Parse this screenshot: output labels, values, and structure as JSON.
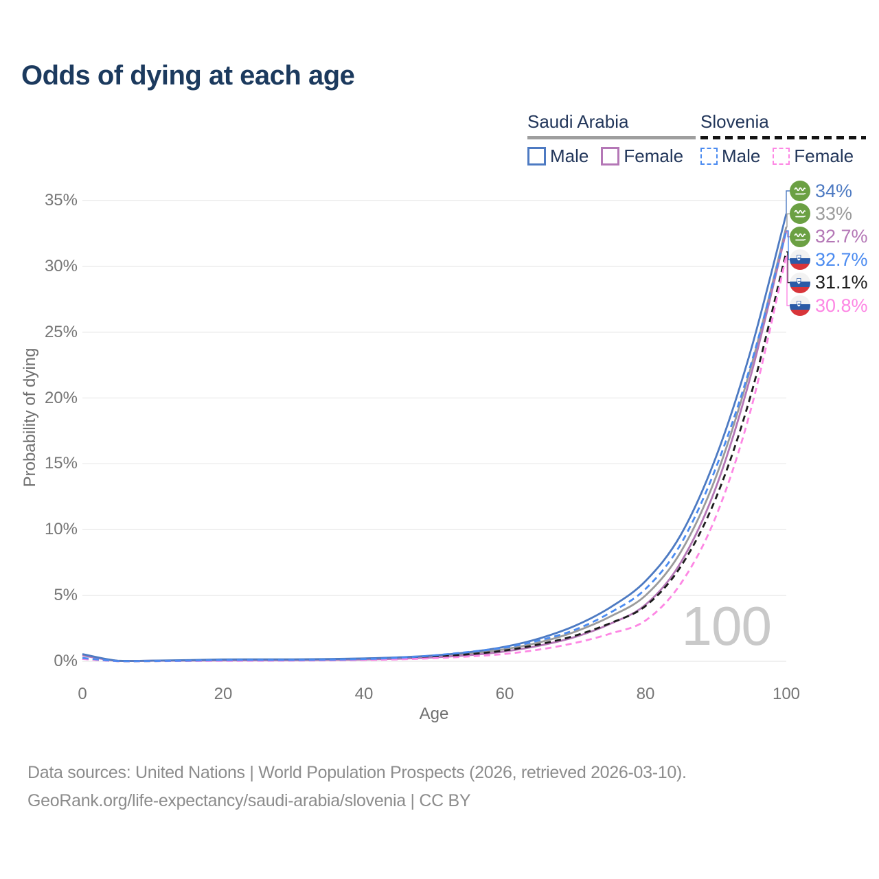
{
  "title": "Odds of dying at each age",
  "legend": {
    "groups": [
      {
        "label": "Saudi Arabia",
        "line_style": "solid",
        "underline_color": "#9e9e9e",
        "items": [
          {
            "label": "Male",
            "swatch": "saudi-male"
          },
          {
            "label": "Female",
            "swatch": "saudi-female"
          }
        ]
      },
      {
        "label": "Slovenia",
        "line_style": "dashed",
        "underline_color": "#141414",
        "items": [
          {
            "label": "Male",
            "swatch": "slovenia-male"
          },
          {
            "label": "Female",
            "swatch": "slovenia-female"
          }
        ]
      }
    ]
  },
  "colors": {
    "saudi_male": "#4d7ac2",
    "saudi_both": "#9b9b9b",
    "saudi_female": "#b477b6",
    "slovenia_male": "#4b8bf0",
    "slovenia_both": "#1c1c1c",
    "slovenia_female": "#fd87e4",
    "title_text": "#1c3a5e",
    "axis_text": "#757575",
    "gridline": "#e8e8e8",
    "watermark": "#c9c9c9",
    "saudi_flag_green": "#6ba043",
    "slovenia_flag_blue": "#2b5ba7",
    "slovenia_flag_red": "#d8353a"
  },
  "chart_data": {
    "type": "line",
    "title": "Odds of dying at each age",
    "xlabel": "Age",
    "ylabel": "Probability of dying",
    "xlim": [
      0,
      100
    ],
    "ylim": [
      0,
      35
    ],
    "x_ticks": [
      "0",
      "20",
      "40",
      "60",
      "80",
      "100"
    ],
    "y_ticks": [
      "0%",
      "5%",
      "10%",
      "15%",
      "20%",
      "25%",
      "30%",
      "35%"
    ],
    "grid": "horizontal",
    "legend_position": "top-right",
    "watermark": "100",
    "x": [
      0,
      5,
      10,
      15,
      20,
      25,
      30,
      35,
      40,
      45,
      50,
      55,
      60,
      65,
      70,
      75,
      80,
      85,
      90,
      95,
      100
    ],
    "series": [
      {
        "key": "saudi-male",
        "name": "Saudi Arabia Male",
        "color": "#4d7ac2",
        "dash": false,
        "flag": "saudi-arabia",
        "end_label": "34%",
        "values": [
          0.55,
          0.04,
          0.05,
          0.09,
          0.14,
          0.15,
          0.15,
          0.17,
          0.22,
          0.3,
          0.45,
          0.7,
          1.1,
          1.75,
          2.7,
          4.1,
          6.1,
          9.6,
          15.5,
          23.7,
          34.0
        ]
      },
      {
        "key": "saudi-both",
        "name": "Saudi Arabia Both sexes",
        "color": "#9b9b9b",
        "dash": false,
        "flag": "saudi-arabia",
        "end_label": "33%",
        "values": [
          0.5,
          0.035,
          0.045,
          0.07,
          0.11,
          0.12,
          0.12,
          0.14,
          0.18,
          0.25,
          0.38,
          0.58,
          0.92,
          1.45,
          2.25,
          3.4,
          5.0,
          8.3,
          14.0,
          22.4,
          33.0
        ]
      },
      {
        "key": "saudi-female",
        "name": "Saudi Arabia Female",
        "color": "#b477b6",
        "dash": false,
        "flag": "saudi-arabia",
        "end_label": "32.7%",
        "values": [
          0.45,
          0.03,
          0.04,
          0.05,
          0.07,
          0.08,
          0.09,
          0.11,
          0.14,
          0.2,
          0.3,
          0.47,
          0.75,
          1.2,
          1.85,
          2.85,
          4.3,
          7.5,
          13.2,
          21.8,
          32.7
        ]
      },
      {
        "key": "slovenia-male",
        "name": "Slovenia Male",
        "color": "#4b8bf0",
        "dash": true,
        "flag": "slovenia",
        "end_label": "32.7%",
        "values": [
          0.25,
          0.02,
          0.02,
          0.05,
          0.09,
          0.1,
          0.1,
          0.12,
          0.17,
          0.27,
          0.45,
          0.72,
          1.05,
          1.6,
          2.4,
          3.7,
          5.5,
          8.9,
          14.7,
          22.6,
          32.7
        ]
      },
      {
        "key": "slovenia-both",
        "name": "Slovenia Both sexes",
        "color": "#1c1c1c",
        "dash": true,
        "flag": "slovenia",
        "end_label": "31.1%",
        "values": [
          0.2,
          0.015,
          0.018,
          0.035,
          0.06,
          0.07,
          0.08,
          0.1,
          0.14,
          0.21,
          0.34,
          0.54,
          0.82,
          1.3,
          1.95,
          2.9,
          4.2,
          7.2,
          12.4,
          20.3,
          31.1
        ]
      },
      {
        "key": "slovenia-female",
        "name": "Slovenia Female",
        "color": "#fd87e4",
        "dash": true,
        "flag": "slovenia",
        "end_label": "30.8%",
        "values": [
          0.18,
          0.012,
          0.015,
          0.025,
          0.035,
          0.04,
          0.05,
          0.07,
          0.1,
          0.15,
          0.24,
          0.37,
          0.56,
          0.9,
          1.4,
          2.1,
          3.1,
          5.9,
          11.0,
          19.2,
          30.8
        ]
      }
    ]
  },
  "footer": {
    "line1": "Data sources: United Nations | World Population Prospects (2026, retrieved 2026-03-10).",
    "line2": "GeoRank.org/life-expectancy/saudi-arabia/slovenia | CC BY"
  }
}
